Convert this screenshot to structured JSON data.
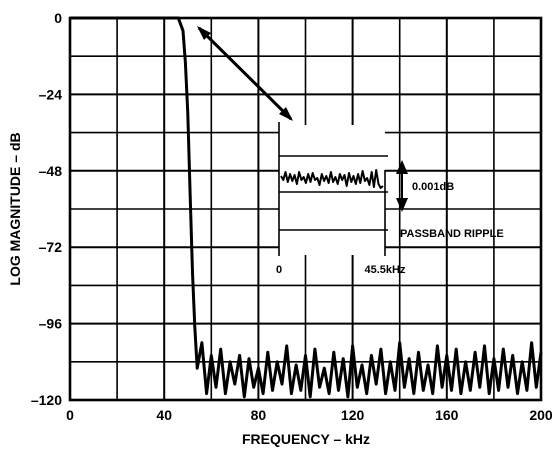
{
  "chart_data": {
    "type": "line",
    "xlabel": "FREQUENCY – kHz",
    "ylabel": "LOG MAGNITUDE – dB",
    "xlim": [
      0,
      200
    ],
    "ylim": [
      -120,
      0
    ],
    "x_ticks": [
      0,
      40,
      80,
      120,
      160,
      200
    ],
    "x_tick_labels": [
      "0",
      "40",
      "80",
      "120",
      "160",
      "200"
    ],
    "y_ticks": [
      0,
      -24,
      -48,
      -72,
      -96,
      -120
    ],
    "y_tick_labels": [
      "0",
      "–24",
      "–48",
      "–72",
      "–96",
      "–120"
    ],
    "grid": true,
    "series": [
      {
        "x": [
          0,
          46,
          48,
          49,
          50,
          51,
          52,
          53,
          54,
          56,
          58,
          60,
          62,
          64,
          66,
          68,
          70,
          72,
          74,
          76,
          78,
          80,
          82,
          84,
          86,
          88,
          90,
          92,
          94,
          96,
          98,
          100,
          102,
          104,
          106,
          108,
          110,
          112,
          114,
          116,
          118,
          120,
          122,
          124,
          126,
          128,
          130,
          132,
          134,
          136,
          138,
          140,
          142,
          144,
          146,
          148,
          150,
          152,
          154,
          156,
          158,
          160,
          162,
          164,
          166,
          168,
          170,
          172,
          174,
          176,
          178,
          180,
          182,
          184,
          186,
          188,
          190,
          192,
          194,
          196,
          198,
          200
        ],
        "y": [
          0,
          0,
          -4,
          -14,
          -30,
          -55,
          -80,
          -97,
          -110,
          -102,
          -118,
          -106,
          -116,
          -104,
          -118,
          -108,
          -115,
          -106,
          -119,
          -107,
          -116,
          -110,
          -118,
          -105,
          -117,
          -108,
          -115,
          -103,
          -118,
          -109,
          -117,
          -106,
          -119,
          -104,
          -116,
          -110,
          -118,
          -105,
          -117,
          -107,
          -119,
          -103,
          -116,
          -109,
          -118,
          -106,
          -115,
          -104,
          -118,
          -108,
          -117,
          -102,
          -116,
          -107,
          -118,
          -105,
          -117,
          -109,
          -118,
          -103,
          -116,
          -106,
          -117,
          -104,
          -118,
          -108,
          -117,
          -105,
          -116,
          -103,
          -118,
          -107,
          -117,
          -104,
          -116,
          -106,
          -118,
          -108,
          -117,
          -102,
          -116,
          -105
        ]
      }
    ],
    "annotations": {
      "passband_ripple": {
        "label": "PASSBAND RIPPLE",
        "x_range": [
          "0",
          "45.5kHz"
        ],
        "scale_label": "0.001dB",
        "ripple": [
          0.4,
          0.6,
          0.2,
          0.7,
          0.3,
          0.65,
          0.35,
          0.8,
          0.2,
          0.6,
          0.45,
          0.75,
          0.3,
          0.7,
          0.25,
          0.6,
          0.5,
          0.85,
          0.3,
          0.65,
          0.4,
          0.75,
          0.2,
          0.7,
          0.45,
          0.8,
          0.3,
          0.6,
          0.35,
          0.9,
          0.25,
          0.7,
          0.4,
          0.8,
          0.3,
          0.75,
          0.15,
          0.65,
          0.5,
          0.85,
          0.2,
          0.95,
          0.1,
          0.8,
          1.0,
          0.9
        ]
      }
    }
  }
}
